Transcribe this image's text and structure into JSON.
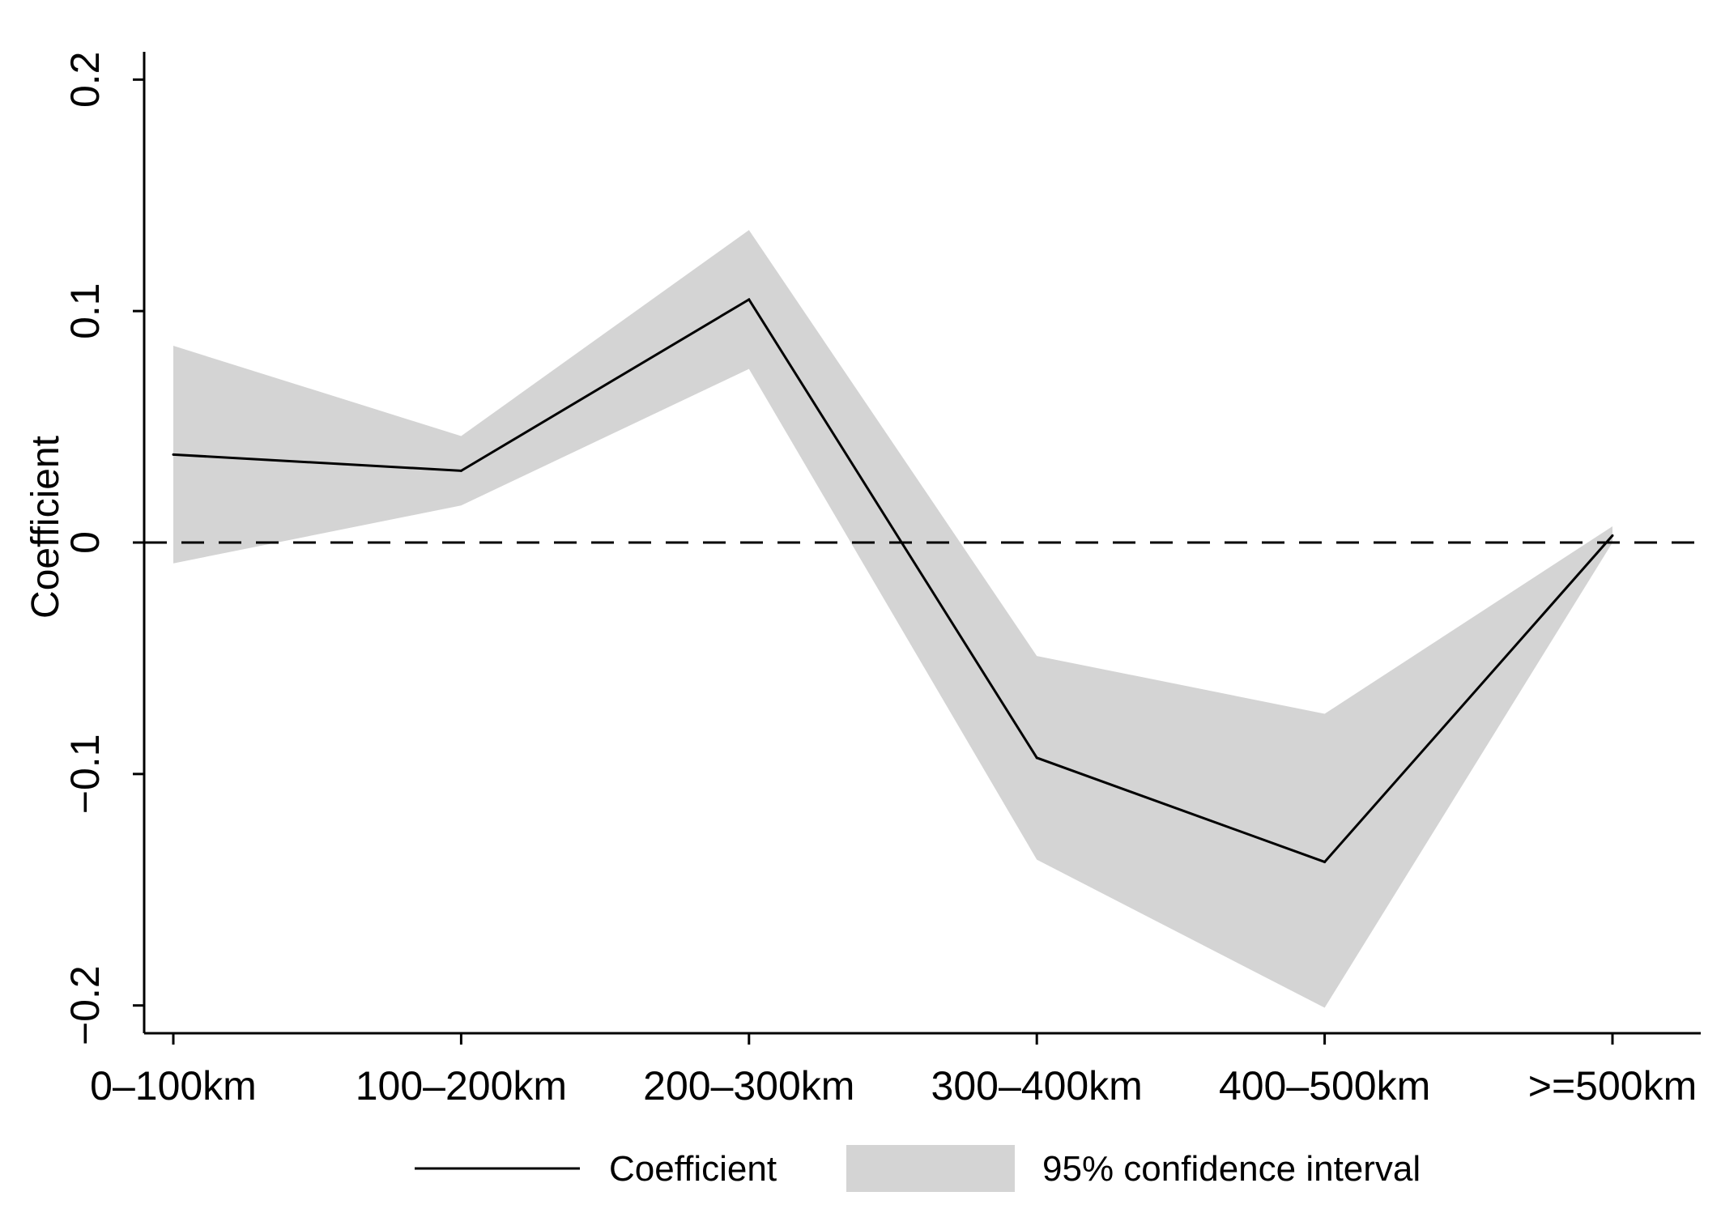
{
  "chart_data": {
    "type": "area",
    "title": "",
    "xlabel": "",
    "ylabel": "Coefficient",
    "categories": [
      "0–100km",
      "100–200km",
      "200–300km",
      "300–400km",
      "400–500km",
      ">=500km"
    ],
    "series": [
      {
        "name": "Coefficient",
        "type": "line",
        "values": [
          0.038,
          0.031,
          0.105,
          -0.093,
          -0.138,
          0.003
        ]
      },
      {
        "name": "95% confidence interval",
        "type": "band",
        "lower": [
          -0.009,
          0.016,
          0.075,
          -0.137,
          -0.201,
          0.0
        ],
        "upper": [
          0.085,
          0.046,
          0.135,
          -0.049,
          -0.074,
          0.007
        ]
      }
    ],
    "reference_line": {
      "y": 0,
      "style": "dashed"
    },
    "ylim": [
      -0.212,
      0.212
    ],
    "yticks": [
      -0.2,
      -0.1,
      0,
      0.1,
      0.2
    ],
    "ytick_labels": [
      "−0.2",
      "−0.1",
      "0",
      "0.1",
      "0.2"
    ],
    "grid": false,
    "legend_position": "bottom",
    "colors": {
      "line": "#000000",
      "band": "#d4d4d4",
      "axis": "#000000"
    }
  }
}
